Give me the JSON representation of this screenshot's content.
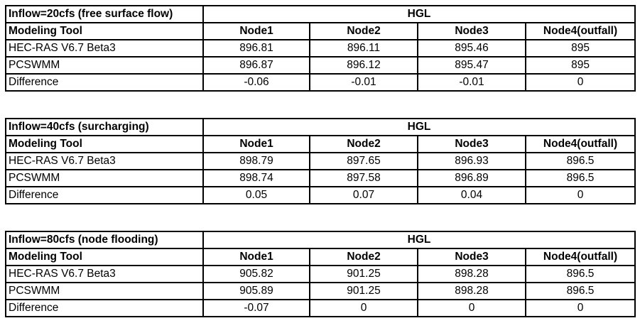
{
  "tables": [
    {
      "title": "Inflow=20cfs (free surface flow)",
      "group_header": "HGL",
      "columns": [
        "Modeling Tool",
        "Node1",
        "Node2",
        "Node3",
        "Node4(outfall)"
      ],
      "rows": [
        [
          "HEC-RAS V6.7 Beta3",
          "896.81",
          "896.11",
          "895.46",
          "895"
        ],
        [
          "PCSWMM",
          "896.87",
          "896.12",
          "895.47",
          "895"
        ],
        [
          "Difference",
          "-0.06",
          "-0.01",
          "-0.01",
          "0"
        ]
      ]
    },
    {
      "title": "Inflow=40cfs (surcharging)",
      "group_header": "HGL",
      "columns": [
        "Modeling Tool",
        "Node1",
        "Node2",
        "Node3",
        "Node4(outfall)"
      ],
      "rows": [
        [
          "HEC-RAS V6.7 Beta3",
          "898.79",
          "897.65",
          "896.93",
          "896.5"
        ],
        [
          "PCSWMM",
          "898.74",
          "897.58",
          "896.89",
          "896.5"
        ],
        [
          "Difference",
          "0.05",
          "0.07",
          "0.04",
          "0"
        ]
      ]
    },
    {
      "title": "Inflow=80cfs (node flooding)",
      "group_header": "HGL",
      "columns": [
        "Modeling Tool",
        "Node1",
        "Node2",
        "Node3",
        "Node4(outfall)"
      ],
      "rows": [
        [
          "HEC-RAS V6.7 Beta3",
          "905.82",
          "901.25",
          "898.28",
          "896.5"
        ],
        [
          "PCSWMM",
          "905.89",
          "901.25",
          "898.28",
          "896.5"
        ],
        [
          "Difference",
          "-0.07",
          "0",
          "0",
          "0"
        ]
      ]
    }
  ]
}
